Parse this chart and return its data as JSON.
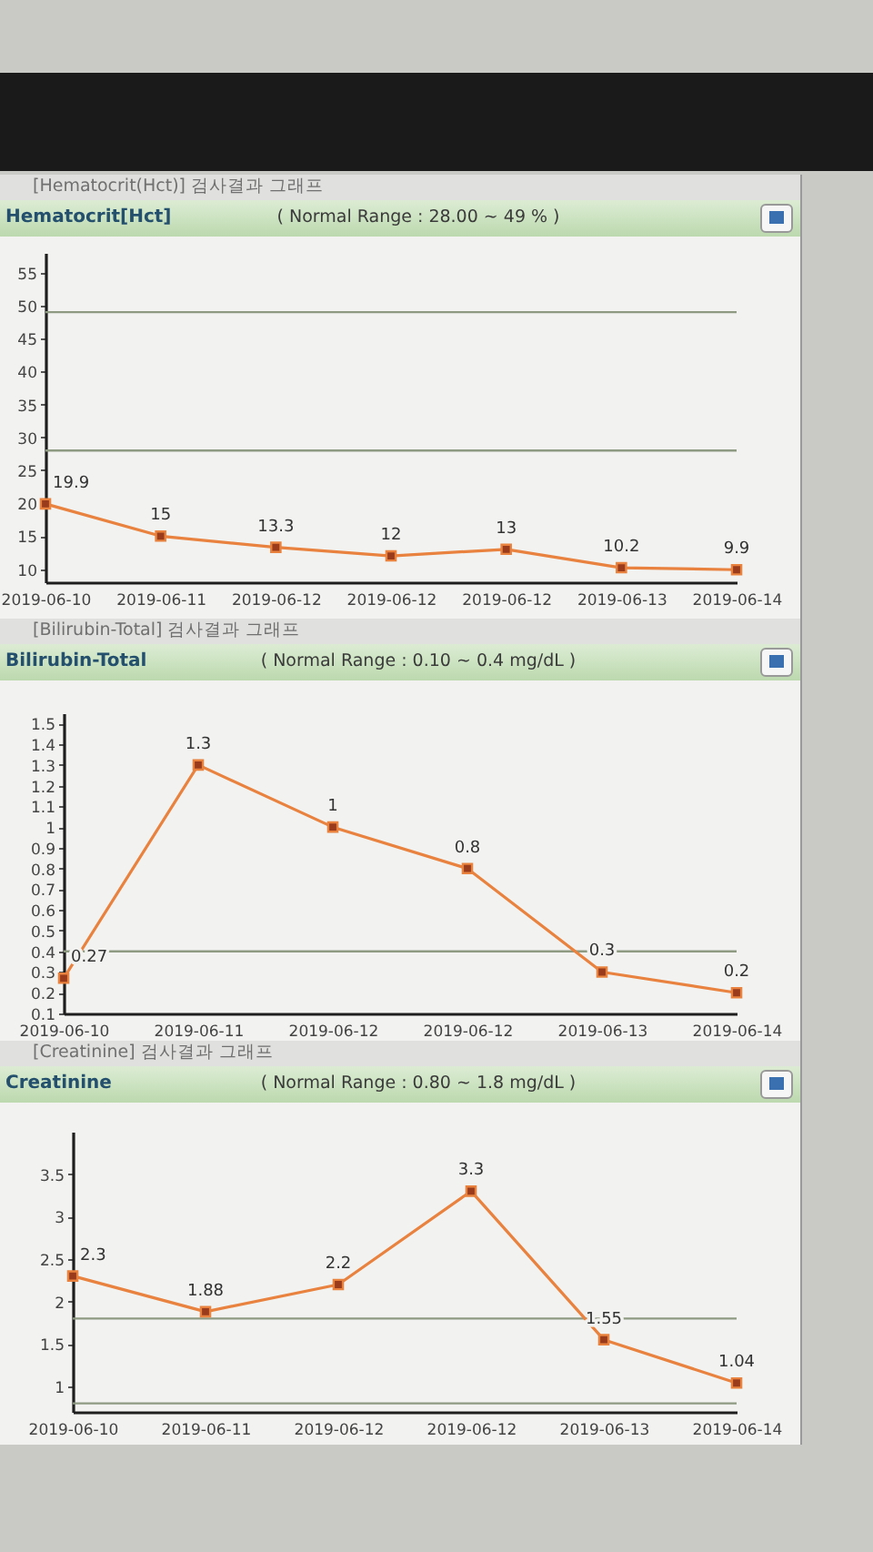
{
  "chart_data": [
    {
      "type": "line",
      "title": "[Hematocrit(Hct)] 검사결과 그래프",
      "subtitle": "Hematocrit[Hct]",
      "annotations": [
        "( Normal Range : 28.00 ~ 49 % )"
      ],
      "categories": [
        "2019-06-10",
        "2019-06-11",
        "2019-06-12",
        "2019-06-12",
        "2019-06-12",
        "2019-06-13",
        "2019-06-14"
      ],
      "series": [
        {
          "color": "#e8823e",
          "values": [
            19.9,
            15,
            13.3,
            12,
            13,
            10.2,
            9.9
          ]
        }
      ],
      "ylim": [
        8,
        58
      ],
      "yticks": [
        10,
        15,
        20,
        25,
        30,
        35,
        40,
        45,
        50,
        55
      ],
      "ref_lines": [
        {
          "axis": "y",
          "value": 28,
          "color": "#8e9a82"
        },
        {
          "axis": "y",
          "value": 49,
          "color": "#8e9a82"
        }
      ],
      "marker": "square",
      "data_labels": true
    },
    {
      "type": "line",
      "title": "[Bilirubin-Total] 검사결과 그래프",
      "subtitle": "Bilirubin-Total",
      "annotations": [
        "( Normal Range : 0.10 ~ 0.4 mg/dL )"
      ],
      "categories": [
        "2019-06-10",
        "2019-06-11",
        "2019-06-12",
        "2019-06-12",
        "2019-06-13",
        "2019-06-14"
      ],
      "series": [
        {
          "color": "#e8823e",
          "values": [
            0.27,
            1.3,
            1,
            0.8,
            0.3,
            0.2
          ]
        }
      ],
      "ylim": [
        0.1,
        1.55
      ],
      "yticks": [
        0.1,
        0.2,
        0.3,
        0.4,
        0.5,
        0.6,
        0.7,
        0.8,
        0.9,
        1,
        1.1,
        1.2,
        1.3,
        1.4,
        1.5
      ],
      "ref_lines": [
        {
          "axis": "y",
          "value": 0.4,
          "color": "#8e9a82"
        }
      ],
      "marker": "square",
      "data_labels": true
    },
    {
      "type": "line",
      "title": "[Creatinine] 검사결과 그래프",
      "subtitle": "Creatinine",
      "annotations": [
        "( Normal Range : 0.80 ~ 1.8 mg/dL )"
      ],
      "categories": [
        "2019-06-10",
        "2019-06-11",
        "2019-06-12",
        "2019-06-12",
        "2019-06-13",
        "2019-06-14"
      ],
      "series": [
        {
          "color": "#e8823e",
          "values": [
            2.3,
            1.88,
            2.2,
            3.3,
            1.55,
            1.04
          ]
        }
      ],
      "ylim": [
        0.7,
        4
      ],
      "yticks": [
        1,
        1.5,
        2,
        2.5,
        3,
        3.5
      ],
      "ref_lines": [
        {
          "axis": "y",
          "value": 0.8,
          "color": "#8e9a82"
        },
        {
          "axis": "y",
          "value": 1.8,
          "color": "#8e9a82"
        }
      ],
      "marker": "square",
      "data_labels": true
    }
  ]
}
